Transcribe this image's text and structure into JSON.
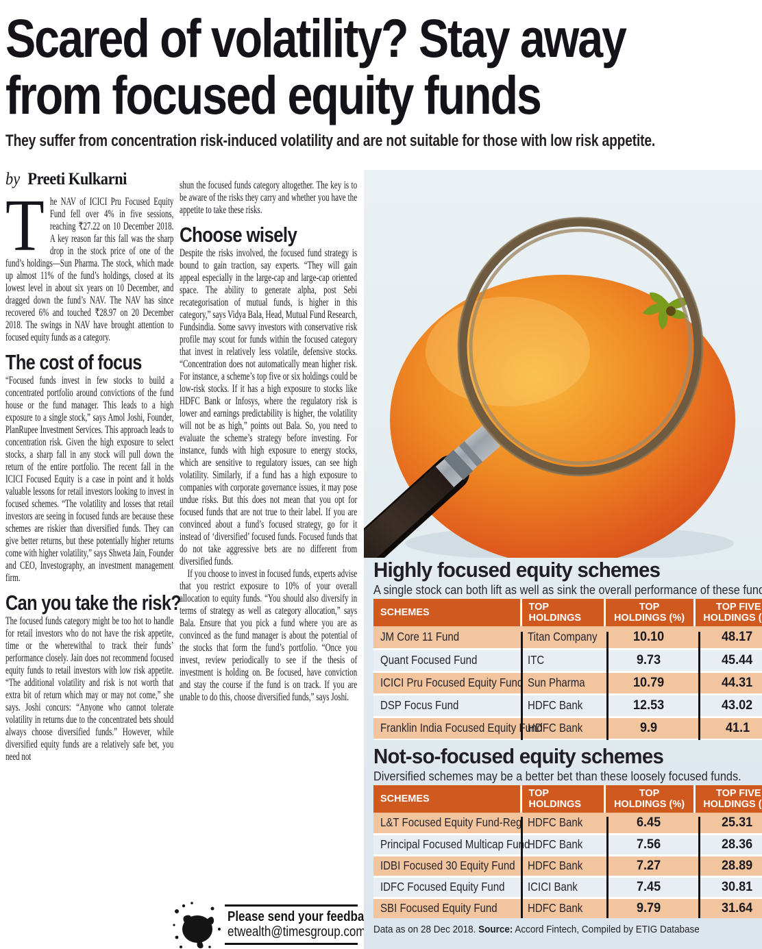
{
  "headline": {
    "line1": "Scared of volatility? Stay away",
    "line2": "from focused equity funds"
  },
  "subheadline": "They suffer from concentration risk-induced volatility and are not suitable for those with low risk appetite.",
  "byline": {
    "prefix": "by",
    "author": "Preeti Kulkarni"
  },
  "article": {
    "para1_dropcap": "T",
    "para1": "he NAV of ICICI Pru Focused Equity Fund fell over 4% in five sessions, reaching ₹27.22 on 10 December 2018. A key reason far this fall was the sharp drop in the stock price of one of the fund’s holdings—Sun Pharma. The stock, which made up almost 11% of the fund’s holdings, closed at its lowest level in about six years on 10 December, and dragged down the fund’s NAV. The NAV has since recovered 6% and touched ₹28.97 on 20 December 2018. The swings in NAV have brought attention to focused equity funds as a category.",
    "heading1": "The cost of focus",
    "para2": "“Focused funds invest in few stocks to build a concentrated portfolio around convictions of the fund house or the fund manager. This leads to a high exposure to a single stock,” says Amol Joshi, Founder, PlanRupee Investment Services. This approach leads to concentration risk. Given the high exposure to select stocks, a sharp fall in any stock will pull down the return of the entire portfolio. The recent fall in the ICICI Focused Equity is a case in point and it holds valuable lessons for retail investors looking to invest in focused schemes. “The volatility and losses that retail investors are seeing in focused funds are because these schemes are riskier than diversified funds. They can give better returns, but these potentially higher returns come with higher volatility,” says Shweta Jain, Founder and CEO, Investography, an investment management firm.",
    "heading2": "Can you take the risk?",
    "para3": "The focused funds category might be too hot to handle for retail investors who do not have the risk appetite, time or the wherewithal to track their funds’ performance closely. Jain does not recommend focused equity funds to retail investors with low risk appetite. “The additional volatility and risk is not worth that extra bit of return which may or may not come,” she says. Joshi concurs: “Anyone who cannot tolerate volatility in returns due to the concentrated bets should always choose diversified funds.” However, while diversified equity funds are a relatively safe bet, you need not",
    "para3_cont": "shun the focused funds category altogether. The key is to be aware of the risks they carry and whether you have the appetite to take these risks.",
    "heading3": "Choose wisely",
    "para4": "Despite the risks involved, the focused fund strategy is bound to gain traction, say experts. “They will gain appeal especially in the large-cap and large-cap oriented space. The ability to generate alpha, post Sebi recategorisation of mutual funds, is higher in this category,” says Vidya Bala, Head, Mutual Fund Research, Fundsindia. Some savvy investors with conservative risk profile may scout for funds within the focused category that invest in relatively less volatile, defensive stocks. “Concentration does not automatically mean higher risk. For instance, a scheme’s top five or six holdings could be low-risk stocks. If it has a high exposure to stocks like HDFC Bank or Infosys, where the regulatory risk is lower and earnings predictability is higher, the volatility will not be as high,” points out Bala. So, you need to evaluate the scheme’s strategy before investing. For instance, funds with high exposure to energy stocks, which are sensitive to regulatory issues, can see high volatility. Similarly, if a fund has a high exposure to companies with corporate governance issues, it may pose undue risks. But this does not mean that you opt for focused funds that are not true to their label. If you are convinced about a fund’s focused strategy, go for it instead of ‘diversified’ focused funds. Focused funds that do not take aggressive bets are no different from diversified funds.",
    "para5": "If you choose to invest in focused funds, experts advise that you restrict exposure to 10% of your overall allocation to equity funds. “You should also diversify in terms of strategy as well as category allocation,” says Bala. Ensure that you pick a fund where you are as convinced as the fund manager is about the potential of the stocks that form the fund’s portfolio. “Once you invest, review periodically to see if the thesis of investment is holding on. Be focused, have conviction and stay the course if the fund is on track. If you are unable to do this, choose diversified funds,” says Joshi."
  },
  "feedback": {
    "line1": "Please send your feedback to",
    "line2": "etwealth@timesgroup.com",
    "icon": "ink-splat"
  },
  "photo": {
    "description": "orange fruit inspected through a magnifying glass",
    "icon": "orange-magnifier"
  },
  "tables": [
    {
      "title": "Highly focused equity schemes",
      "subtitle": "A single stock can both lift as well as sink the overall performance of these funds.",
      "columns": [
        "SCHEMES",
        "TOP HOLDINGS",
        "TOP\nHOLDINGS (%)",
        "TOP FIVE\nHOLDINGS (%)"
      ],
      "rows": [
        [
          "JM Core 11 Fund",
          "Titan Company",
          "10.10",
          "48.17"
        ],
        [
          "Quant Focused Fund",
          "ITC",
          "9.73",
          "45.44"
        ],
        [
          "ICICI Pru Focused Equity Fund",
          "Sun Pharma",
          "10.79",
          "44.31"
        ],
        [
          "DSP Focus Fund",
          "HDFC Bank",
          "12.53",
          "43.02"
        ],
        [
          "Franklin India Focused Equity Fund",
          "HDFC Bank",
          "9.9",
          "41.1"
        ]
      ]
    },
    {
      "title": "Not-so-focused equity schemes",
      "subtitle": "Diversified schemes may be a better bet than these loosely focused funds.",
      "columns": [
        "SCHEMES",
        "TOP HOLDINGS",
        "TOP\nHOLDINGS (%)",
        "TOP FIVE\nHOLDINGS (%)"
      ],
      "rows": [
        [
          "L&T Focused Equity Fund-Reg",
          "HDFC Bank",
          "6.45",
          "25.31"
        ],
        [
          "Principal Focused Multicap Fund",
          "HDFC Bank",
          "7.56",
          "28.36"
        ],
        [
          "IDBI Focused 30 Equity Fund",
          "HDFC Bank",
          "7.27",
          "28.89"
        ],
        [
          "IDFC Focused Equity Fund",
          "ICICI Bank",
          "7.45",
          "30.81"
        ],
        [
          "SBI Focused Equity Fund",
          "HDFC Bank",
          "9.79",
          "31.64"
        ]
      ]
    }
  ],
  "source_note": {
    "prefix": "Data as on 28 Dec 2018. ",
    "source_label": "Source:",
    "text": " Accord Fintech, Compiled by ETIG Database"
  },
  "colors": {
    "table_header": "#d0591f",
    "row_peach": "#f2c59e",
    "row_light": "#e8eef4",
    "panel_bg": "#e2eaef",
    "headline_text": "#16121a"
  }
}
